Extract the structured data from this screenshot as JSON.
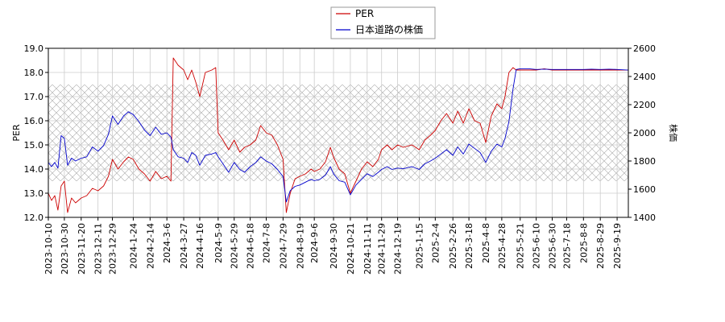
{
  "chart_data": {
    "type": "line",
    "ylabel_left": "PER",
    "ylabel_right": "株価",
    "ylim_left": [
      12.0,
      19.0
    ],
    "ylim_right": [
      1400,
      2600
    ],
    "yticks_left": [
      "12.0",
      "13.0",
      "14.0",
      "15.0",
      "16.0",
      "17.0",
      "18.0",
      "19.0"
    ],
    "yticks_right": [
      "1400",
      "1600",
      "1800",
      "2000",
      "2200",
      "2400",
      "2600"
    ],
    "x_start": "2023-10-10",
    "x_end": "2025-10-03",
    "xticks": [
      "2023-10-10",
      "2023-10-30",
      "2023-11-20",
      "2023-12-11",
      "2023-12-29",
      "2024-1-24",
      "2024-2-14",
      "2024-3-6",
      "2024-3-27",
      "2024-4-16",
      "2024-5-9",
      "2024-5-29",
      "2024-6-18",
      "2024-7-8",
      "2024-7-29",
      "2024-8-19",
      "2024-9-6",
      "2024-9-30",
      "2024-10-21",
      "2024-11-11",
      "2024-11-29",
      "2024-12-19",
      "2025-1-15",
      "2025-2-4",
      "2025-2-26",
      "2025-3-18",
      "2025-4-8",
      "2025-4-28",
      "2025-5-21",
      "2025-6-10",
      "2025-6-30",
      "2025-7-18",
      "2025-8-8",
      "2025-8-29",
      "2025-9-19"
    ],
    "grid": true,
    "hatched_band": {
      "axis": "left",
      "from": 13.5,
      "to": 17.5
    },
    "legend_position": "top-center",
    "series": [
      {
        "name": "PER",
        "axis": "left",
        "color": "#cc0000",
        "points": [
          [
            "2023-10-10",
            13.0
          ],
          [
            "2023-10-14",
            12.7
          ],
          [
            "2023-10-18",
            12.9
          ],
          [
            "2023-10-22",
            12.3
          ],
          [
            "2023-10-26",
            13.3
          ],
          [
            "2023-10-30",
            13.5
          ],
          [
            "2023-11-03",
            12.2
          ],
          [
            "2023-11-08",
            12.8
          ],
          [
            "2023-11-13",
            12.6
          ],
          [
            "2023-11-20",
            12.8
          ],
          [
            "2023-11-27",
            12.9
          ],
          [
            "2023-12-04",
            13.2
          ],
          [
            "2023-12-11",
            13.1
          ],
          [
            "2023-12-18",
            13.3
          ],
          [
            "2023-12-24",
            13.7
          ],
          [
            "2023-12-29",
            14.4
          ],
          [
            "2024-01-05",
            14.0
          ],
          [
            "2024-01-12",
            14.3
          ],
          [
            "2024-01-18",
            14.5
          ],
          [
            "2024-01-24",
            14.4
          ],
          [
            "2024-01-31",
            14.0
          ],
          [
            "2024-02-07",
            13.8
          ],
          [
            "2024-02-14",
            13.5
          ],
          [
            "2024-02-21",
            13.9
          ],
          [
            "2024-02-28",
            13.6
          ],
          [
            "2024-03-06",
            13.7
          ],
          [
            "2024-03-11",
            13.5
          ],
          [
            "2024-03-14",
            18.6
          ],
          [
            "2024-03-20",
            18.3
          ],
          [
            "2024-03-27",
            18.1
          ],
          [
            "2024-04-01",
            17.7
          ],
          [
            "2024-04-06",
            18.1
          ],
          [
            "2024-04-11",
            17.6
          ],
          [
            "2024-04-16",
            17.0
          ],
          [
            "2024-04-23",
            18.0
          ],
          [
            "2024-05-01",
            18.1
          ],
          [
            "2024-05-06",
            18.2
          ],
          [
            "2024-05-09",
            15.5
          ],
          [
            "2024-05-15",
            15.2
          ],
          [
            "2024-05-22",
            14.8
          ],
          [
            "2024-05-29",
            15.2
          ],
          [
            "2024-06-05",
            14.7
          ],
          [
            "2024-06-11",
            14.9
          ],
          [
            "2024-06-18",
            15.0
          ],
          [
            "2024-06-25",
            15.2
          ],
          [
            "2024-07-01",
            15.8
          ],
          [
            "2024-07-08",
            15.5
          ],
          [
            "2024-07-15",
            15.4
          ],
          [
            "2024-07-22",
            15.0
          ],
          [
            "2024-07-29",
            14.4
          ],
          [
            "2024-08-02",
            12.2
          ],
          [
            "2024-08-07",
            13.0
          ],
          [
            "2024-08-13",
            13.6
          ],
          [
            "2024-08-19",
            13.7
          ],
          [
            "2024-08-26",
            13.8
          ],
          [
            "2024-09-02",
            14.0
          ],
          [
            "2024-09-06",
            13.9
          ],
          [
            "2024-09-13",
            14.0
          ],
          [
            "2024-09-20",
            14.3
          ],
          [
            "2024-09-26",
            14.9
          ],
          [
            "2024-09-30",
            14.5
          ],
          [
            "2024-10-07",
            14.0
          ],
          [
            "2024-10-14",
            13.8
          ],
          [
            "2024-10-21",
            13.0
          ],
          [
            "2024-10-28",
            13.5
          ],
          [
            "2024-11-04",
            14.0
          ],
          [
            "2024-11-11",
            14.3
          ],
          [
            "2024-11-18",
            14.1
          ],
          [
            "2024-11-25",
            14.4
          ],
          [
            "2024-11-29",
            14.8
          ],
          [
            "2024-12-06",
            15.0
          ],
          [
            "2024-12-12",
            14.8
          ],
          [
            "2024-12-19",
            15.0
          ],
          [
            "2024-12-26",
            14.9
          ],
          [
            "2025-01-06",
            15.0
          ],
          [
            "2025-01-15",
            14.8
          ],
          [
            "2025-01-22",
            15.2
          ],
          [
            "2025-01-29",
            15.4
          ],
          [
            "2025-02-04",
            15.6
          ],
          [
            "2025-02-11",
            16.0
          ],
          [
            "2025-02-18",
            16.3
          ],
          [
            "2025-02-26",
            15.9
          ],
          [
            "2025-03-04",
            16.4
          ],
          [
            "2025-03-11",
            15.9
          ],
          [
            "2025-03-18",
            16.5
          ],
          [
            "2025-03-25",
            16.0
          ],
          [
            "2025-04-01",
            15.9
          ],
          [
            "2025-04-08",
            15.1
          ],
          [
            "2025-04-15",
            16.2
          ],
          [
            "2025-04-22",
            16.7
          ],
          [
            "2025-04-28",
            16.5
          ],
          [
            "2025-05-02",
            17.0
          ],
          [
            "2025-05-07",
            18.0
          ],
          [
            "2025-05-12",
            18.2
          ],
          [
            "2025-05-16",
            18.1
          ],
          [
            "2025-05-21",
            18.1
          ],
          [
            "2025-06-01",
            18.1
          ],
          [
            "2025-06-10",
            18.1
          ],
          [
            "2025-06-20",
            18.15
          ],
          [
            "2025-06-30",
            18.1
          ],
          [
            "2025-07-10",
            18.1
          ],
          [
            "2025-07-18",
            18.1
          ],
          [
            "2025-07-28",
            18.1
          ],
          [
            "2025-08-08",
            18.1
          ],
          [
            "2025-08-18",
            18.1
          ],
          [
            "2025-08-29",
            18.1
          ],
          [
            "2025-09-09",
            18.1
          ],
          [
            "2025-09-19",
            18.1
          ],
          [
            "2025-10-03",
            18.1
          ]
        ]
      },
      {
        "name": "日本道路の株価",
        "axis": "right",
        "color": "#0000cc",
        "points": [
          [
            "2023-10-10",
            1790
          ],
          [
            "2023-10-14",
            1760
          ],
          [
            "2023-10-18",
            1790
          ],
          [
            "2023-10-22",
            1750
          ],
          [
            "2023-10-26",
            1980
          ],
          [
            "2023-10-30",
            1960
          ],
          [
            "2023-11-03",
            1770
          ],
          [
            "2023-11-08",
            1820
          ],
          [
            "2023-11-13",
            1800
          ],
          [
            "2023-11-20",
            1820
          ],
          [
            "2023-11-27",
            1830
          ],
          [
            "2023-12-04",
            1900
          ],
          [
            "2023-12-11",
            1870
          ],
          [
            "2023-12-18",
            1910
          ],
          [
            "2023-12-24",
            1990
          ],
          [
            "2023-12-29",
            2120
          ],
          [
            "2024-01-05",
            2060
          ],
          [
            "2024-01-12",
            2120
          ],
          [
            "2024-01-18",
            2150
          ],
          [
            "2024-01-24",
            2130
          ],
          [
            "2024-01-31",
            2080
          ],
          [
            "2024-02-07",
            2020
          ],
          [
            "2024-02-14",
            1980
          ],
          [
            "2024-02-21",
            2040
          ],
          [
            "2024-02-28",
            1990
          ],
          [
            "2024-03-06",
            2000
          ],
          [
            "2024-03-11",
            1970
          ],
          [
            "2024-03-14",
            1880
          ],
          [
            "2024-03-20",
            1830
          ],
          [
            "2024-03-27",
            1820
          ],
          [
            "2024-04-01",
            1790
          ],
          [
            "2024-04-06",
            1860
          ],
          [
            "2024-04-11",
            1840
          ],
          [
            "2024-04-16",
            1770
          ],
          [
            "2024-04-23",
            1840
          ],
          [
            "2024-05-01",
            1850
          ],
          [
            "2024-05-06",
            1860
          ],
          [
            "2024-05-09",
            1830
          ],
          [
            "2024-05-15",
            1780
          ],
          [
            "2024-05-22",
            1720
          ],
          [
            "2024-05-29",
            1790
          ],
          [
            "2024-06-05",
            1740
          ],
          [
            "2024-06-11",
            1720
          ],
          [
            "2024-06-18",
            1760
          ],
          [
            "2024-06-25",
            1790
          ],
          [
            "2024-07-01",
            1830
          ],
          [
            "2024-07-08",
            1800
          ],
          [
            "2024-07-15",
            1780
          ],
          [
            "2024-07-22",
            1740
          ],
          [
            "2024-07-29",
            1690
          ],
          [
            "2024-08-02",
            1510
          ],
          [
            "2024-08-07",
            1590
          ],
          [
            "2024-08-13",
            1620
          ],
          [
            "2024-08-19",
            1630
          ],
          [
            "2024-08-26",
            1650
          ],
          [
            "2024-09-02",
            1670
          ],
          [
            "2024-09-06",
            1660
          ],
          [
            "2024-09-13",
            1670
          ],
          [
            "2024-09-20",
            1700
          ],
          [
            "2024-09-26",
            1760
          ],
          [
            "2024-09-30",
            1710
          ],
          [
            "2024-10-07",
            1660
          ],
          [
            "2024-10-14",
            1650
          ],
          [
            "2024-10-21",
            1560
          ],
          [
            "2024-10-28",
            1630
          ],
          [
            "2024-11-04",
            1670
          ],
          [
            "2024-11-11",
            1710
          ],
          [
            "2024-11-18",
            1690
          ],
          [
            "2024-11-25",
            1720
          ],
          [
            "2024-11-29",
            1740
          ],
          [
            "2024-12-06",
            1760
          ],
          [
            "2024-12-12",
            1740
          ],
          [
            "2024-12-19",
            1750
          ],
          [
            "2024-12-26",
            1745
          ],
          [
            "2025-01-06",
            1760
          ],
          [
            "2025-01-15",
            1740
          ],
          [
            "2025-01-22",
            1780
          ],
          [
            "2025-01-29",
            1800
          ],
          [
            "2025-02-04",
            1820
          ],
          [
            "2025-02-11",
            1850
          ],
          [
            "2025-02-18",
            1880
          ],
          [
            "2025-02-26",
            1840
          ],
          [
            "2025-03-04",
            1900
          ],
          [
            "2025-03-11",
            1850
          ],
          [
            "2025-03-18",
            1920
          ],
          [
            "2025-03-25",
            1890
          ],
          [
            "2025-04-01",
            1860
          ],
          [
            "2025-04-08",
            1790
          ],
          [
            "2025-04-15",
            1870
          ],
          [
            "2025-04-22",
            1920
          ],
          [
            "2025-04-28",
            1900
          ],
          [
            "2025-05-02",
            1960
          ],
          [
            "2025-05-07",
            2080
          ],
          [
            "2025-05-12",
            2310
          ],
          [
            "2025-05-16",
            2450
          ],
          [
            "2025-05-21",
            2455
          ],
          [
            "2025-06-01",
            2455
          ],
          [
            "2025-06-10",
            2450
          ],
          [
            "2025-06-20",
            2452
          ],
          [
            "2025-06-30",
            2450
          ],
          [
            "2025-07-10",
            2450
          ],
          [
            "2025-07-18",
            2450
          ],
          [
            "2025-07-28",
            2450
          ],
          [
            "2025-08-08",
            2450
          ],
          [
            "2025-08-18",
            2452
          ],
          [
            "2025-08-29",
            2450
          ],
          [
            "2025-09-09",
            2452
          ],
          [
            "2025-09-19",
            2450
          ],
          [
            "2025-10-03",
            2445
          ]
        ]
      }
    ]
  }
}
